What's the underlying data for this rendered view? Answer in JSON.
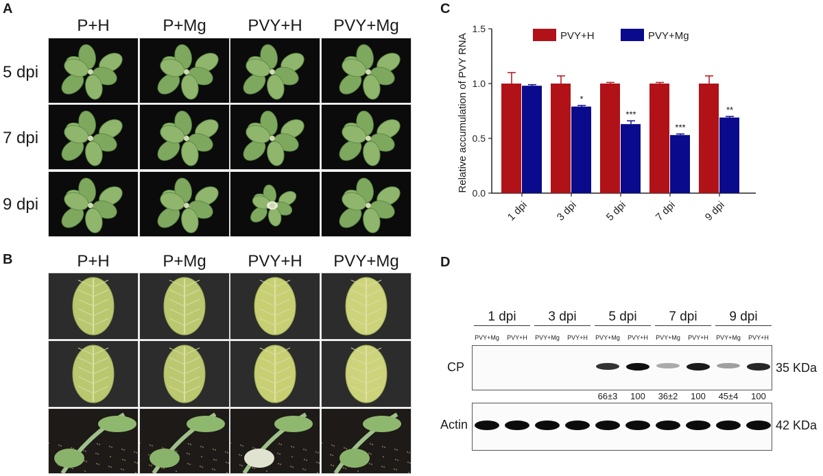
{
  "panels": {
    "a": "A",
    "b": "B",
    "c": "C",
    "d": "D"
  },
  "panelA": {
    "columns": [
      "P+H",
      "P+Mg",
      "PVY+H",
      "PVY+Mg"
    ],
    "rows": [
      "5 dpi",
      "7 dpi",
      "9 dpi"
    ]
  },
  "panelB": {
    "columns": [
      "P+H",
      "P+Mg",
      "PVY+H",
      "PVY+Mg"
    ]
  },
  "chart_data": {
    "type": "bar",
    "ylabel": "Relative accumulation of PVY RNA",
    "categories": [
      "1 dpi",
      "3 dpi",
      "5 dpi",
      "7 dpi",
      "9 dpi"
    ],
    "ylim": [
      0,
      1.5
    ],
    "yticks": [
      "0.0",
      "0.5",
      "1.0",
      "1.5"
    ],
    "series": [
      {
        "name": "PVY+H",
        "color": "#b01218",
        "values": [
          1.0,
          1.0,
          1.0,
          1.0,
          1.0
        ],
        "errors": [
          0.1,
          0.07,
          0.01,
          0.01,
          0.07
        ]
      },
      {
        "name": "PVY+Mg",
        "color": "#0a0a8c",
        "values": [
          0.98,
          0.79,
          0.63,
          0.53,
          0.69
        ],
        "errors": [
          0.01,
          0.01,
          0.03,
          0.01,
          0.01
        ]
      }
    ],
    "significance": [
      "",
      "*",
      "***",
      "***",
      "**"
    ],
    "legend": "top"
  },
  "panelD": {
    "timepoints": [
      "1 dpi",
      "3 dpi",
      "5 dpi",
      "7 dpi",
      "9 dpi"
    ],
    "lanes": [
      "PVY+Mg",
      "PVY+H",
      "PVY+Mg",
      "PVY+H",
      "PVY+Mg",
      "PVY+H",
      "PVY+Mg",
      "PVY+H",
      "PVY+Mg",
      "PVY+H"
    ],
    "cp_label": "CP",
    "actin_label": "Actin",
    "cp_size": "35 KDa",
    "actin_size": "42 KDa",
    "quant": [
      "",
      "",
      "",
      "",
      "66±3",
      "100",
      "36±2",
      "100",
      "45±4",
      "100"
    ],
    "cp_intensity": [
      0,
      0,
      0,
      0,
      0.85,
      1.0,
      0.35,
      0.95,
      0.4,
      0.9
    ]
  }
}
